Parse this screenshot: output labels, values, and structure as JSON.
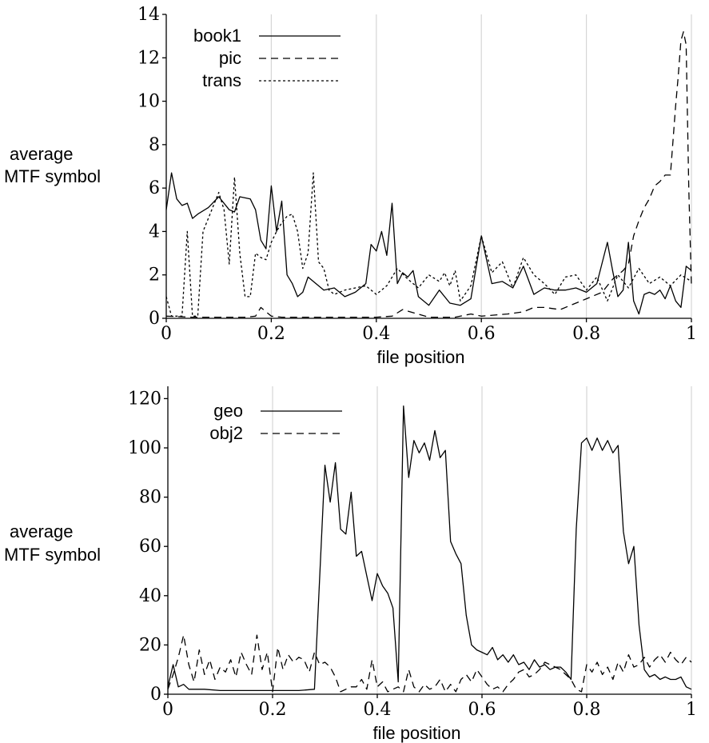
{
  "chart_data": [
    {
      "type": "line",
      "xlabel": "file position",
      "ylabel_lines": [
        "average",
        "MTF symbol"
      ],
      "xlim": [
        0,
        1
      ],
      "ylim": [
        0,
        14
      ],
      "xticks": [
        "0",
        "0.2",
        "0.4",
        "0.6",
        "0.8",
        "1"
      ],
      "yticks": [
        "0",
        "2",
        "4",
        "6",
        "8",
        "10",
        "12",
        "14"
      ],
      "grid": "vertical",
      "legend": "top-left",
      "series": [
        {
          "name": "book1",
          "dash": "solid",
          "x": [
            0,
            0.01,
            0.02,
            0.03,
            0.04,
            0.05,
            0.06,
            0.08,
            0.1,
            0.12,
            0.13,
            0.14,
            0.16,
            0.17,
            0.18,
            0.19,
            0.2,
            0.21,
            0.22,
            0.23,
            0.24,
            0.25,
            0.26,
            0.27,
            0.28,
            0.3,
            0.32,
            0.34,
            0.36,
            0.38,
            0.39,
            0.4,
            0.41,
            0.42,
            0.43,
            0.44,
            0.45,
            0.46,
            0.47,
            0.48,
            0.5,
            0.52,
            0.54,
            0.56,
            0.58,
            0.6,
            0.62,
            0.64,
            0.66,
            0.68,
            0.7,
            0.72,
            0.74,
            0.76,
            0.78,
            0.8,
            0.82,
            0.84,
            0.85,
            0.86,
            0.87,
            0.88,
            0.89,
            0.9,
            0.91,
            0.92,
            0.93,
            0.94,
            0.95,
            0.96,
            0.97,
            0.98,
            0.99,
            1.0
          ],
          "y": [
            5.0,
            6.7,
            5.5,
            5.2,
            5.3,
            4.6,
            4.8,
            5.1,
            5.6,
            5.0,
            4.9,
            5.6,
            5.5,
            5.0,
            3.6,
            3.2,
            6.1,
            4.0,
            5.4,
            2.0,
            1.6,
            1.0,
            1.2,
            1.9,
            1.7,
            1.3,
            1.4,
            1.0,
            1.2,
            1.6,
            3.4,
            3.1,
            4.0,
            2.9,
            5.3,
            1.6,
            2.1,
            1.9,
            2.2,
            1.0,
            0.6,
            1.3,
            0.7,
            0.6,
            0.9,
            3.8,
            1.6,
            1.7,
            1.4,
            2.4,
            1.1,
            1.4,
            1.3,
            1.3,
            1.4,
            1.2,
            1.6,
            3.5,
            2.2,
            1.0,
            1.3,
            3.5,
            0.8,
            0.2,
            1.1,
            1.2,
            1.1,
            1.3,
            0.9,
            1.5,
            0.8,
            0.5,
            2.4,
            2.2
          ]
        },
        {
          "name": "pic",
          "dash": "dashed",
          "x": [
            0,
            0.05,
            0.1,
            0.15,
            0.17,
            0.18,
            0.2,
            0.22,
            0.25,
            0.3,
            0.35,
            0.4,
            0.43,
            0.45,
            0.5,
            0.55,
            0.58,
            0.6,
            0.65,
            0.68,
            0.7,
            0.72,
            0.75,
            0.78,
            0.8,
            0.83,
            0.85,
            0.87,
            0.88,
            0.89,
            0.9,
            0.91,
            0.92,
            0.93,
            0.94,
            0.95,
            0.96,
            0.97,
            0.975,
            0.98,
            0.985,
            0.99,
            0.995,
            1.0
          ],
          "y": [
            0.1,
            0.05,
            0.05,
            0.05,
            0.1,
            0.5,
            0.1,
            0.05,
            0.05,
            0.05,
            0.05,
            0.05,
            0.1,
            0.4,
            0.05,
            0.05,
            0.2,
            0.1,
            0.2,
            0.3,
            0.5,
            0.5,
            0.4,
            0.7,
            0.9,
            1.2,
            1.8,
            2.2,
            2.5,
            3.8,
            4.5,
            5.1,
            5.5,
            6.1,
            6.3,
            6.6,
            6.6,
            9.8,
            11.2,
            12.8,
            13.2,
            12.6,
            6.0,
            1.5
          ]
        },
        {
          "name": "trans",
          "dash": "dotted",
          "x": [
            0,
            0.01,
            0.02,
            0.03,
            0.04,
            0.05,
            0.06,
            0.07,
            0.08,
            0.09,
            0.1,
            0.11,
            0.12,
            0.13,
            0.14,
            0.15,
            0.16,
            0.17,
            0.18,
            0.19,
            0.2,
            0.21,
            0.22,
            0.23,
            0.24,
            0.25,
            0.26,
            0.27,
            0.28,
            0.29,
            0.3,
            0.31,
            0.32,
            0.34,
            0.36,
            0.38,
            0.4,
            0.42,
            0.44,
            0.46,
            0.48,
            0.5,
            0.52,
            0.53,
            0.54,
            0.55,
            0.56,
            0.58,
            0.6,
            0.62,
            0.64,
            0.66,
            0.68,
            0.7,
            0.72,
            0.74,
            0.76,
            0.78,
            0.8,
            0.82,
            0.84,
            0.86,
            0.88,
            0.9,
            0.92,
            0.94,
            0.96,
            0.98,
            1.0
          ],
          "y": [
            1.0,
            0.1,
            0.1,
            0.1,
            4.0,
            0.1,
            0.1,
            4.0,
            4.6,
            5.2,
            5.8,
            5.0,
            2.5,
            6.5,
            3.0,
            1.0,
            1.0,
            3.0,
            2.8,
            2.7,
            3.5,
            4.0,
            4.4,
            4.7,
            4.8,
            4.0,
            2.3,
            3.0,
            6.7,
            2.6,
            2.3,
            1.3,
            1.1,
            1.3,
            1.4,
            1.5,
            1.1,
            1.5,
            2.3,
            1.8,
            1.4,
            2.0,
            1.7,
            2.1,
            1.5,
            2.2,
            0.8,
            1.5,
            3.8,
            2.1,
            2.6,
            1.4,
            2.8,
            2.0,
            1.6,
            1.1,
            1.9,
            2.0,
            1.3,
            1.9,
            0.8,
            2.0,
            1.4,
            2.3,
            1.6,
            1.9,
            1.5,
            2.0,
            1.7
          ]
        }
      ]
    },
    {
      "type": "line",
      "xlabel": "file position",
      "ylabel_lines": [
        "average",
        "MTF symbol"
      ],
      "xlim": [
        0,
        1
      ],
      "ylim": [
        0,
        125
      ],
      "xticks": [
        "0",
        "0.2",
        "0.4",
        "0.6",
        "0.8",
        "1"
      ],
      "yticks": [
        "0",
        "20",
        "40",
        "60",
        "80",
        "100",
        "120"
      ],
      "grid": "vertical",
      "legend": "top-left",
      "series": [
        {
          "name": "geo",
          "dash": "solid",
          "x": [
            0,
            0.01,
            0.02,
            0.03,
            0.04,
            0.05,
            0.07,
            0.1,
            0.15,
            0.2,
            0.25,
            0.28,
            0.3,
            0.31,
            0.32,
            0.33,
            0.34,
            0.35,
            0.36,
            0.37,
            0.38,
            0.39,
            0.4,
            0.41,
            0.42,
            0.43,
            0.44,
            0.45,
            0.46,
            0.47,
            0.48,
            0.49,
            0.5,
            0.51,
            0.52,
            0.53,
            0.54,
            0.55,
            0.56,
            0.57,
            0.58,
            0.59,
            0.6,
            0.61,
            0.62,
            0.63,
            0.64,
            0.65,
            0.66,
            0.67,
            0.68,
            0.69,
            0.7,
            0.71,
            0.72,
            0.73,
            0.74,
            0.75,
            0.76,
            0.77,
            0.78,
            0.79,
            0.8,
            0.81,
            0.82,
            0.83,
            0.84,
            0.85,
            0.86,
            0.87,
            0.88,
            0.89,
            0.9,
            0.91,
            0.92,
            0.93,
            0.94,
            0.95,
            0.96,
            0.97,
            0.98,
            0.99,
            1.0
          ],
          "y": [
            3,
            12,
            3,
            4,
            2,
            2,
            2,
            1.5,
            1.5,
            1.5,
            1.5,
            2,
            93,
            78,
            94,
            67,
            65,
            82,
            56,
            58,
            48,
            38,
            49,
            44,
            41,
            35,
            5,
            117,
            88,
            103,
            98,
            102,
            95,
            107,
            96,
            99,
            62,
            57,
            53,
            32,
            20,
            18,
            17,
            16,
            19,
            14,
            16,
            13,
            16,
            12,
            13,
            10,
            14,
            11,
            12,
            10,
            11,
            11,
            9,
            6,
            67,
            102,
            104,
            99,
            104,
            99,
            103,
            98,
            101,
            66,
            53,
            60,
            28,
            10,
            7,
            8,
            6,
            7,
            6,
            6,
            7,
            3,
            2
          ]
        },
        {
          "name": "obj2",
          "dash": "dashed",
          "x": [
            0,
            0.01,
            0.02,
            0.03,
            0.04,
            0.05,
            0.06,
            0.07,
            0.08,
            0.09,
            0.1,
            0.11,
            0.12,
            0.13,
            0.14,
            0.15,
            0.16,
            0.17,
            0.18,
            0.19,
            0.2,
            0.21,
            0.22,
            0.23,
            0.24,
            0.25,
            0.26,
            0.27,
            0.28,
            0.29,
            0.3,
            0.31,
            0.32,
            0.33,
            0.34,
            0.35,
            0.36,
            0.37,
            0.38,
            0.39,
            0.4,
            0.41,
            0.42,
            0.43,
            0.44,
            0.45,
            0.46,
            0.47,
            0.48,
            0.49,
            0.5,
            0.51,
            0.52,
            0.53,
            0.54,
            0.55,
            0.56,
            0.57,
            0.58,
            0.59,
            0.6,
            0.61,
            0.62,
            0.63,
            0.64,
            0.65,
            0.66,
            0.67,
            0.68,
            0.69,
            0.7,
            0.71,
            0.72,
            0.73,
            0.74,
            0.75,
            0.76,
            0.77,
            0.78,
            0.79,
            0.8,
            0.81,
            0.82,
            0.83,
            0.84,
            0.85,
            0.86,
            0.87,
            0.88,
            0.89,
            0.9,
            0.91,
            0.92,
            0.93,
            0.94,
            0.95,
            0.96,
            0.97,
            0.98,
            0.99,
            1.0
          ],
          "y": [
            2,
            8,
            15,
            24,
            12,
            5,
            18,
            8,
            14,
            6,
            11,
            9,
            14,
            7,
            17,
            12,
            8,
            24,
            10,
            17,
            1,
            19,
            10,
            16,
            13,
            15,
            14,
            9,
            17,
            12,
            13,
            11,
            7,
            1,
            2,
            3,
            3,
            6,
            2,
            14,
            3,
            5,
            1,
            2,
            3,
            1,
            10,
            3,
            1,
            4,
            2,
            3,
            6,
            1,
            4,
            1,
            6,
            8,
            5,
            10,
            7,
            4,
            2,
            3,
            1,
            4,
            6,
            9,
            10,
            7,
            8,
            10,
            13,
            12,
            11,
            10,
            8,
            6,
            2,
            1,
            12,
            9,
            13,
            8,
            11,
            6,
            13,
            9,
            16,
            11,
            12,
            15,
            11,
            14,
            16,
            13,
            17,
            14,
            12,
            15,
            13
          ]
        }
      ]
    }
  ]
}
